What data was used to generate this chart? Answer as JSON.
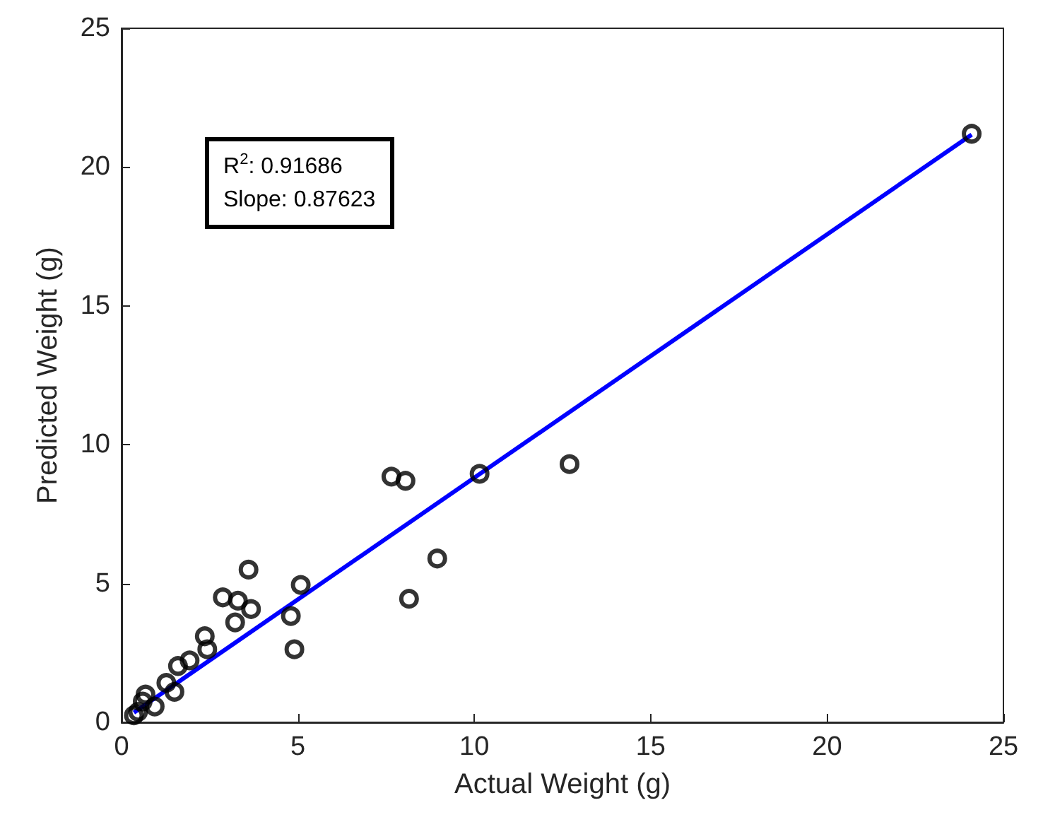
{
  "chart_data": {
    "type": "scatter",
    "xlabel": "Actual Weight (g)",
    "ylabel": "Predicted Weight (g)",
    "annotations": [
      "R$^{2}$: 0.91686",
      "Slope: 0.87623"
    ],
    "xlim": [
      0,
      25
    ],
    "xticks": [
      0,
      5,
      10,
      15,
      20,
      25
    ],
    "ylim": [
      0,
      25
    ],
    "yticks": [
      0,
      5,
      10,
      15,
      20,
      25
    ],
    "grid": false,
    "marker": "circle",
    "series": [
      {
        "color": "#000000",
        "x": [
          24.1,
          12.7,
          10.15,
          7.65,
          8.05,
          8.95,
          8.15,
          5.08,
          4.8,
          4.9,
          3.6,
          2.87,
          3.3,
          3.67,
          3.22,
          2.36,
          2.43,
          1.93,
          1.6,
          1.27,
          1.5,
          0.68,
          0.6,
          0.94,
          0.35,
          0.47
        ],
        "values": [
          21.2,
          9.3,
          8.95,
          8.85,
          8.7,
          5.9,
          4.45,
          4.95,
          3.83,
          2.63,
          5.5,
          4.5,
          4.38,
          4.08,
          3.6,
          3.1,
          2.63,
          2.23,
          2.03,
          1.42,
          1.1,
          1.0,
          0.75,
          0.57,
          0.25,
          0.38
        ]
      },
      {
        "type": "line",
        "color": "#0000ff",
        "marker": "none",
        "line_style": "solid",
        "x": [
          0.35,
          24.1
        ],
        "values": [
          0.35,
          21.17
        ]
      }
    ]
  }
}
